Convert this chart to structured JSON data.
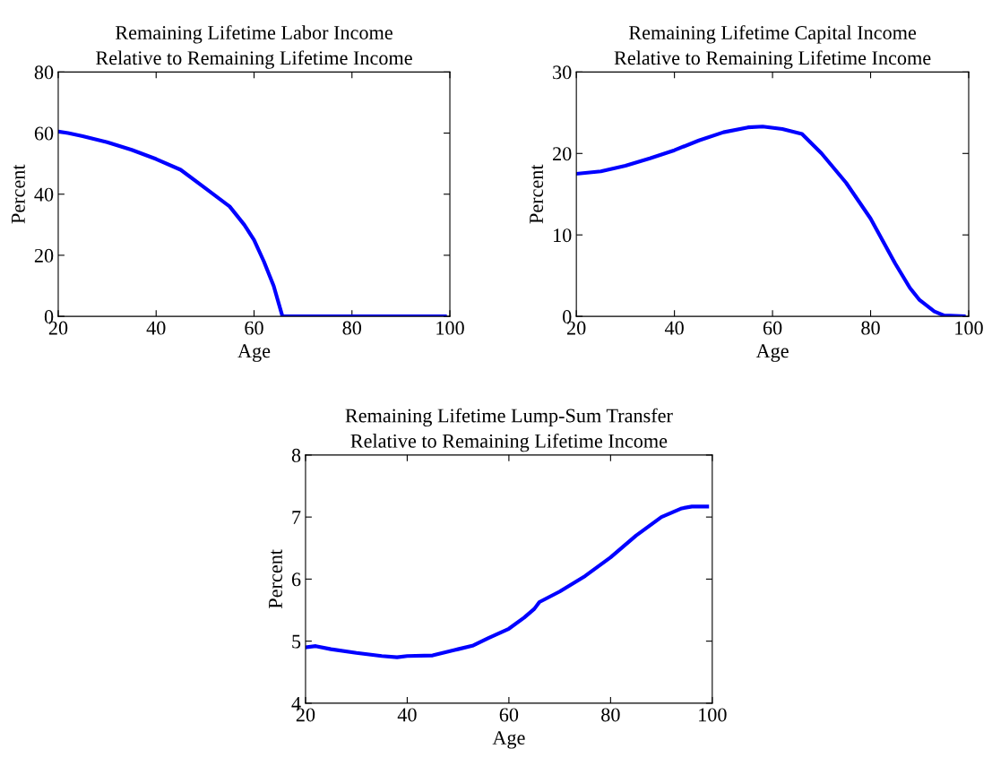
{
  "chart_data": [
    {
      "type": "line",
      "title": "Remaining Lifetime Labor Income\nRelative to Remaining Lifetime Income",
      "xlabel": "Age",
      "ylabel": "Percent",
      "xlim": [
        20,
        100
      ],
      "xticks": [
        20,
        40,
        60,
        80,
        100
      ],
      "ylim": [
        0,
        80
      ],
      "yticks": [
        0,
        20,
        40,
        60,
        80
      ],
      "grid": false,
      "series": [
        {
          "color": "#0000ff",
          "x": [
            20,
            22,
            25,
            30,
            35,
            40,
            45,
            50,
            55,
            58,
            60,
            62,
            64,
            65.8,
            70,
            80,
            90,
            99
          ],
          "values": [
            60.5,
            60,
            59,
            57,
            54.5,
            51.5,
            48,
            42,
            36,
            30,
            25,
            18,
            10,
            0,
            0,
            0,
            0,
            0
          ]
        }
      ]
    },
    {
      "type": "line",
      "title": "Remaining Lifetime Capital Income\nRelative to Remaining Lifetime Income",
      "xlabel": "Age",
      "ylabel": "Percent",
      "xlim": [
        20,
        100
      ],
      "xticks": [
        20,
        40,
        60,
        80,
        100
      ],
      "ylim": [
        0,
        30
      ],
      "yticks": [
        0,
        10,
        20,
        30
      ],
      "grid": false,
      "series": [
        {
          "color": "#0000ff",
          "x": [
            20,
            25,
            30,
            35,
            40,
            45,
            50,
            55,
            58,
            62,
            66,
            70,
            75,
            80,
            85,
            88,
            90,
            93,
            95,
            99
          ],
          "values": [
            17.5,
            17.8,
            18.5,
            19.4,
            20.4,
            21.6,
            22.6,
            23.2,
            23.3,
            23.0,
            22.4,
            20,
            16.4,
            12,
            6.5,
            3.5,
            2,
            0.6,
            0.1,
            0
          ]
        }
      ]
    },
    {
      "type": "line",
      "title": "Remaining Lifetime Lump-Sum Transfer\nRelative to Remaining Lifetime Income",
      "xlabel": "Age",
      "ylabel": "Percent",
      "xlim": [
        20,
        100
      ],
      "xticks": [
        20,
        40,
        60,
        80,
        100
      ],
      "ylim": [
        4,
        8
      ],
      "yticks": [
        4,
        5,
        6,
        7,
        8
      ],
      "grid": false,
      "series": [
        {
          "color": "#0000ff",
          "x": [
            20,
            22,
            25,
            30,
            35,
            38,
            40,
            45,
            50,
            53,
            56,
            60,
            63,
            65,
            66,
            70,
            75,
            80,
            85,
            90,
            94,
            96,
            99
          ],
          "values": [
            4.9,
            4.92,
            4.87,
            4.81,
            4.76,
            4.74,
            4.76,
            4.77,
            4.87,
            4.93,
            5.05,
            5.2,
            5.38,
            5.52,
            5.63,
            5.8,
            6.05,
            6.35,
            6.7,
            7.0,
            7.14,
            7.17,
            7.17
          ]
        }
      ]
    }
  ]
}
